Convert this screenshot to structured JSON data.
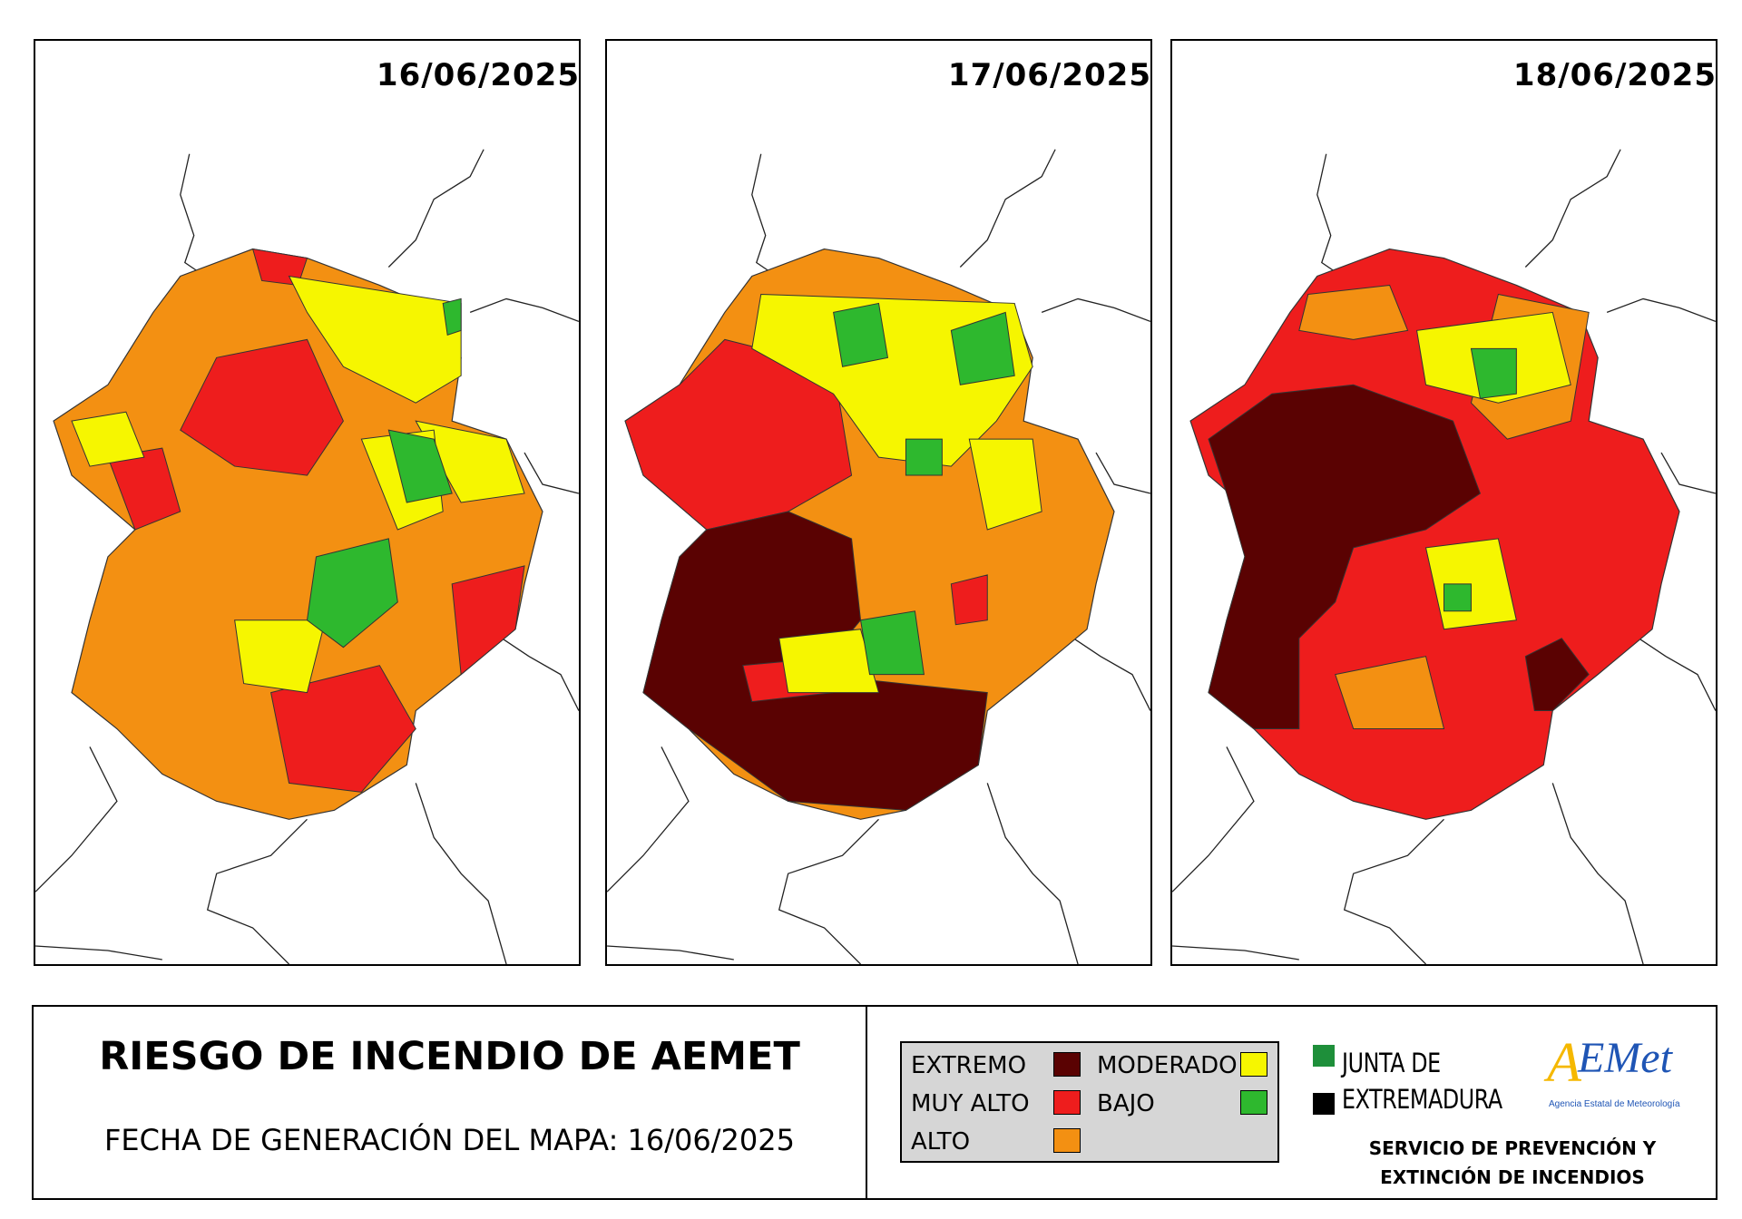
{
  "panels": [
    {
      "date": "16/06/2025"
    },
    {
      "date": "17/06/2025"
    },
    {
      "date": "18/06/2025"
    }
  ],
  "title": "RIESGO DE INCENDIO DE AEMET",
  "generation_date": "FECHA DE GENERACIÓN DEL MAPA: 16/06/2025",
  "legend": {
    "items": [
      {
        "label": "EXTREMO",
        "color": "#5a0202"
      },
      {
        "label": "MUY ALTO",
        "color": "#ee1d1d"
      },
      {
        "label": "ALTO",
        "color": "#f39012"
      },
      {
        "label": "MODERADO",
        "color": "#f6f600"
      },
      {
        "label": "BAJO",
        "color": "#2eb82e"
      }
    ]
  },
  "junta": {
    "line1": "JUNTA DE",
    "line2": "EXTREMADURA",
    "green": "#1e8f3a",
    "black": "#000000"
  },
  "aemet": {
    "logo_text": "AEMet",
    "subtitle": "Agencia Estatal de Meteorología"
  },
  "service": {
    "line1": "SERVICIO DE PREVENCIÓN Y",
    "line2": "EXTINCIÓN DE INCENDIOS"
  }
}
